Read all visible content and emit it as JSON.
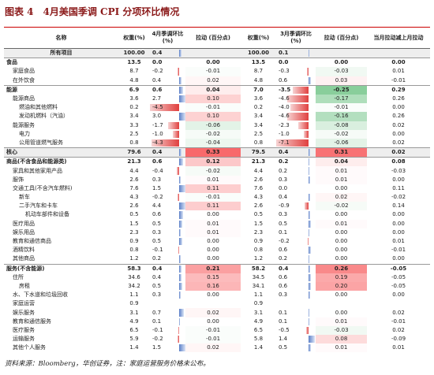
{
  "title": "图表 4　4月美国季调 CPI 分项环比情况",
  "table": {
    "columns": [
      "名称",
      "权重(%)",
      "4月季调环比(%)",
      "拉动 (百分点)",
      "权重(%)",
      "3月季调环比(%)",
      "拉动 (百分点)",
      "当月拉动减上月拉动"
    ],
    "rows": [
      [
        "所有项目",
        "100.00",
        "0.4",
        null,
        "100.00",
        "0.1",
        null,
        null
      ],
      [
        "食品",
        "13.5",
        "0.0",
        "0.00",
        "13.5",
        "0.0",
        "0.00",
        "0.00"
      ],
      [
        "家庭食品",
        "8.7",
        "-0.2",
        "-0.01",
        "8.7",
        "-0.3",
        "-0.03",
        "0.01"
      ],
      [
        "在外饮食",
        "4.8",
        "0.4",
        "0.02",
        "4.8",
        "0.6",
        "0.03",
        "-0.01"
      ],
      [
        "能源",
        "6.9",
        "0.6",
        "0.04",
        "7.0",
        "-3.5",
        "-0.25",
        "0.29"
      ],
      [
        "能源商品",
        "3.6",
        "2.7",
        "0.10",
        "3.6",
        "-4.6",
        "-0.17",
        "0.26"
      ],
      [
        "燃油和其他燃料",
        "0.2",
        "-4.5",
        "-0.01",
        "0.2",
        "-4.0",
        "-0.01",
        "0.00"
      ],
      [
        "发动机燃料（汽油）",
        "3.4",
        "3.0",
        "0.10",
        "3.4",
        "-4.6",
        "-0.16",
        "0.26"
      ],
      [
        "能源服务",
        "3.3",
        "-1.7",
        "-0.06",
        "3.4",
        "-2.3",
        "-0.08",
        "0.02"
      ],
      [
        "电力",
        "2.5",
        "-1.0",
        "-0.02",
        "2.5",
        "-1.0",
        "-0.02",
        "0.00"
      ],
      [
        "公用管道燃气服务",
        "0.8",
        "-4.3",
        "-0.04",
        "0.8",
        "-7.1",
        "-0.06",
        "0.02"
      ],
      [
        "核心",
        "79.6",
        "0.4",
        "0.33",
        "79.5",
        "0.4",
        "0.31",
        "0.02"
      ],
      [
        "商品(不含食品和能源类)",
        "21.3",
        "0.6",
        "0.12",
        "21.3",
        "0.2",
        "0.04",
        "0.08"
      ],
      [
        "家具和其他家用产品",
        "4.4",
        "-0.4",
        "-0.02",
        "4.4",
        "0.2",
        "0.01",
        "-0.03"
      ],
      [
        "服饰",
        "2.6",
        "0.3",
        "0.01",
        "2.6",
        "0.3",
        "0.01",
        "0.00"
      ],
      [
        "交通工具(不含汽车燃料)",
        "7.6",
        "1.5",
        "0.11",
        "7.6",
        "0.0",
        "0.00",
        "0.11"
      ],
      [
        "新车",
        "4.3",
        "-0.2",
        "-0.01",
        "4.3",
        "0.4",
        "0.02",
        "-0.02"
      ],
      [
        "二手汽车和卡车",
        "2.6",
        "4.4",
        "0.11",
        "2.6",
        "-0.9",
        "-0.02",
        "0.14"
      ],
      [
        "机动车部件和设备",
        "0.5",
        "0.6",
        "0.00",
        "0.5",
        "0.3",
        "0.00",
        "0.00"
      ],
      [
        "医疗用品",
        "1.5",
        "0.5",
        "0.01",
        "1.5",
        "0.5",
        "0.01",
        "0.00"
      ],
      [
        "娱乐用品",
        "2.3",
        "0.3",
        "0.01",
        "2.3",
        "0.1",
        "0.00",
        "0.00"
      ],
      [
        "教育和通信商品",
        "0.9",
        "0.5",
        "0.00",
        "0.9",
        "-0.2",
        "0.00",
        "0.01"
      ],
      [
        "酒精饮料",
        "0.8",
        "-0.1",
        "0.00",
        "0.8",
        "0.6",
        "0.00",
        "-0.01"
      ],
      [
        "其他商品",
        "1.2",
        "0.2",
        "0.00",
        "1.2",
        "0.2",
        "0.00",
        "0.00"
      ],
      [
        "服务(不含能源)",
        "58.3",
        "0.4",
        "0.21",
        "58.2",
        "0.4",
        "0.26",
        "-0.05"
      ],
      [
        "住所",
        "34.6",
        "0.4",
        "0.15",
        "34.5",
        "0.6",
        "0.19",
        "-0.05"
      ],
      [
        "房租",
        "34.2",
        "0.5",
        "0.16",
        "34.1",
        "0.6",
        "0.20",
        "-0.05"
      ],
      [
        "水、下水道和垃圾回收",
        "1.1",
        "0.3",
        "0.00",
        "1.1",
        "0.3",
        "0.00",
        "0.00"
      ],
      [
        "家庭运营",
        "0.9",
        null,
        null,
        "0.9",
        null,
        null,
        null
      ],
      [
        "娱乐服务",
        "3.1",
        "0.7",
        "0.02",
        "3.1",
        "0.1",
        "0.00",
        "0.02"
      ],
      [
        "教育和通信服务",
        "4.9",
        "0.1",
        "0.00",
        "4.9",
        "0.1",
        "0.01",
        "-0.01"
      ],
      [
        "医疗服务",
        "6.5",
        "-0.1",
        "-0.01",
        "6.5",
        "-0.5",
        "-0.03",
        "0.02"
      ],
      [
        "运输服务",
        "5.9",
        "-0.2",
        "-0.01",
        "5.8",
        "1.4",
        "0.08",
        "-0.09"
      ],
      [
        "其他个人服务",
        "1.4",
        "1.5",
        "0.02",
        "1.4",
        "0.5",
        "0.01",
        "0.01"
      ]
    ]
  },
  "footer": "资料来源：Bloomberg，华创证券，注：家庭运营服务价格未公布。"
}
